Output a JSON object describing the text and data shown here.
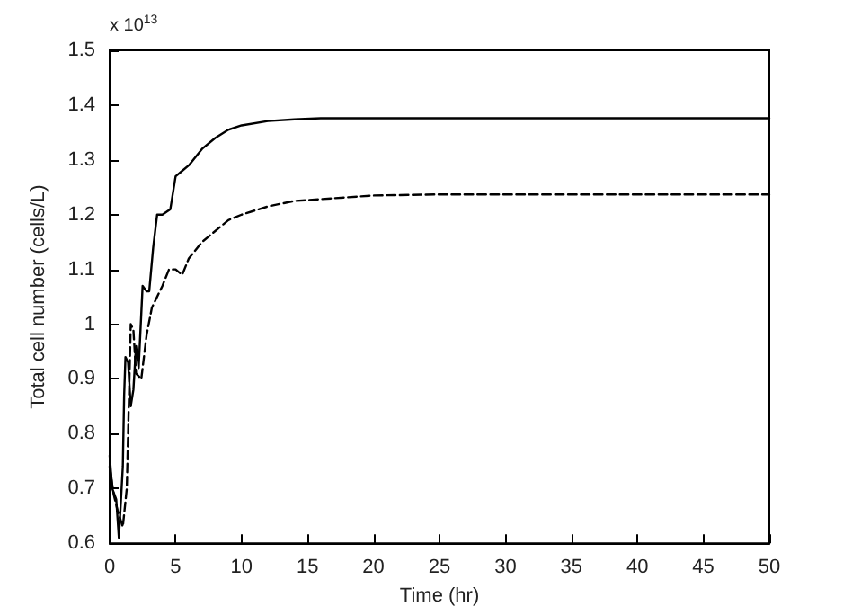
{
  "chart_data": {
    "type": "line",
    "xlabel": "Time (hr)",
    "ylabel": "Total cell number (cells/L)",
    "annotations": [
      "x 10$^{13}$"
    ],
    "xlim": [
      0,
      50
    ],
    "xticks": [
      0,
      5,
      10,
      15,
      20,
      25,
      30,
      35,
      40,
      45,
      50
    ],
    "ylim": [
      0.6,
      1.5
    ],
    "yticks": [
      0.6,
      0.7,
      0.8,
      0.9,
      {
        "value": 1,
        "label": "1"
      },
      1.1,
      1.2,
      1.3,
      1.4,
      1.5
    ],
    "grid": false,
    "marker": "none",
    "series": [
      {
        "color": "#000000",
        "line_style": "solid",
        "x": [
          0,
          0.2,
          0.5,
          0.7,
          1.0,
          1.1,
          1.2,
          1.4,
          1.6,
          1.8,
          2.0,
          2.2,
          2.5,
          2.8,
          3.0,
          3.3,
          3.6,
          4,
          4.6,
          5,
          5.5,
          6,
          7,
          8,
          9,
          10,
          12,
          14,
          16,
          50
        ],
        "values": [
          0.76,
          0.7,
          0.68,
          0.61,
          0.74,
          0.87,
          0.94,
          0.93,
          0.85,
          0.88,
          0.96,
          0.92,
          1.07,
          1.06,
          1.06,
          1.14,
          1.2,
          1.2,
          1.21,
          1.27,
          1.28,
          1.29,
          1.32,
          1.34,
          1.355,
          1.363,
          1.371,
          1.374,
          1.376,
          1.376
        ]
      },
      {
        "color": "#000000",
        "line_style": "dashed",
        "x": [
          0,
          0.3,
          0.6,
          1.0,
          1.3,
          1.6,
          1.8,
          2.0,
          2.4,
          2.8,
          3.2,
          4,
          4.5,
          5,
          5.5,
          6,
          7,
          8,
          9,
          10,
          12,
          14,
          17,
          20,
          25,
          50
        ],
        "values": [
          0.74,
          0.69,
          0.66,
          0.63,
          0.7,
          1.0,
          0.99,
          0.91,
          0.9,
          0.98,
          1.03,
          1.07,
          1.1,
          1.1,
          1.09,
          1.12,
          1.15,
          1.17,
          1.19,
          1.2,
          1.215,
          1.225,
          1.23,
          1.235,
          1.237,
          1.237
        ]
      }
    ]
  }
}
